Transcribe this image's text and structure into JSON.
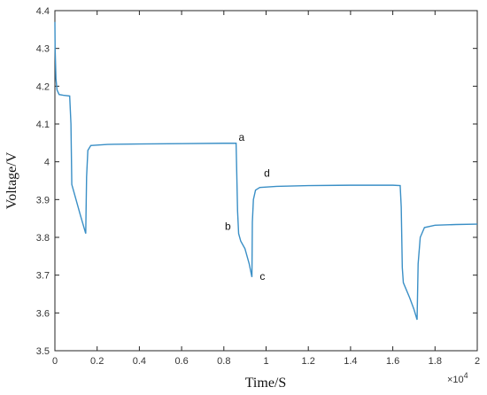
{
  "chart_data": {
    "type": "line",
    "xlabel": "Time/S",
    "ylabel": "Voltage/V",
    "xlim": [
      0,
      20000
    ],
    "ylim": [
      3.5,
      4.4
    ],
    "x_ticks": [
      0,
      2000,
      4000,
      6000,
      8000,
      10000,
      12000,
      14000,
      16000,
      18000,
      20000
    ],
    "x_tick_labels": [
      "0",
      "0.2",
      "0.4",
      "0.6",
      "0.8",
      "1",
      "1.2",
      "1.4",
      "1.6",
      "1.8",
      "2"
    ],
    "x_multiplier": {
      "base": "×10",
      "exp": "4"
    },
    "y_ticks": [
      3.5,
      3.6,
      3.7,
      3.8,
      3.9,
      4.0,
      4.1,
      4.2,
      4.3,
      4.4
    ],
    "y_tick_labels": [
      "3.5",
      "3.6",
      "3.7",
      "3.8",
      "3.9",
      "4",
      "4.1",
      "4.2",
      "4.3",
      "4.4"
    ],
    "grid": false,
    "color": "#3a8fc6",
    "series": [
      {
        "x": [
          0,
          10,
          50,
          100,
          200,
          400,
          700,
          760,
          800,
          1000,
          1200,
          1460,
          1500,
          1560,
          1700,
          2500,
          4000,
          6000,
          8000,
          8500,
          8580,
          8600,
          8650,
          8700,
          8800,
          9000,
          9200,
          9330,
          9350,
          9400,
          9500,
          9700,
          10500,
          12000,
          14000,
          16000,
          16350,
          16400,
          16450,
          16500,
          16800,
          17000,
          17150,
          17200,
          17300,
          17500,
          18000,
          19000,
          20000
        ],
        "y": [
          4.37,
          4.3,
          4.22,
          4.19,
          4.178,
          4.176,
          4.174,
          4.1,
          3.94,
          3.9,
          3.86,
          3.81,
          3.96,
          4.03,
          4.043,
          4.046,
          4.047,
          4.048,
          4.049,
          4.049,
          4.049,
          4.0,
          3.87,
          3.81,
          3.79,
          3.77,
          3.73,
          3.695,
          3.84,
          3.9,
          3.925,
          3.932,
          3.935,
          3.937,
          3.938,
          3.938,
          3.937,
          3.88,
          3.72,
          3.68,
          3.64,
          3.61,
          3.582,
          3.73,
          3.8,
          3.826,
          3.832,
          3.834,
          3.835
        ]
      }
    ],
    "annotations": [
      {
        "text": "a",
        "x": 8700,
        "y": 4.055
      },
      {
        "text": "b",
        "x": 8050,
        "y": 3.82
      },
      {
        "text": "c",
        "x": 9700,
        "y": 3.688
      },
      {
        "text": "d",
        "x": 9900,
        "y": 3.96
      }
    ]
  }
}
